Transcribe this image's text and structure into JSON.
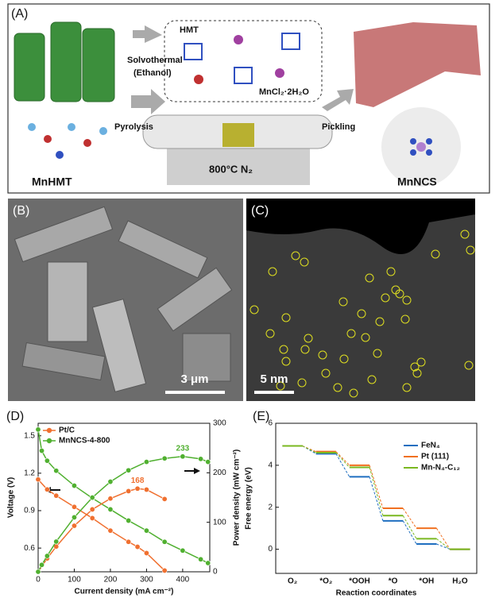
{
  "panel_a": {
    "label": "(A)",
    "solvothermal": "Solvothermal",
    "solvent": "(Ethanol)",
    "hmt": "HMT",
    "mncl": "MnCl₂·2H₂O",
    "pyrolysis": "Pyrolysis",
    "pickling": "Pickling",
    "condition": "800°C  N₂",
    "precursor": "MnHMT",
    "product": "MnNCS"
  },
  "panel_b": {
    "label": "(B)",
    "scale_bar": "3 μm"
  },
  "panel_c": {
    "label": "(C)",
    "scale_bar": "5 nm"
  },
  "panel_d": {
    "label": "(D)"
  },
  "panel_e": {
    "label": "(E)"
  },
  "chart_data": [
    {
      "type": "line",
      "xlabel": "Current density (mA cm⁻²)",
      "ylabel": "Voltage (V)",
      "y2label": "Power density (mW cm⁻²)",
      "xlim": [
        0,
        475
      ],
      "xticks": [
        0,
        100,
        200,
        300,
        400
      ],
      "ylim": [
        0.41,
        1.6
      ],
      "yticks": [
        0.6,
        0.9,
        1.2,
        1.5
      ],
      "y2lim": [
        0,
        300
      ],
      "y2ticks": [
        0,
        100,
        200,
        300
      ],
      "series": [
        {
          "name": "Pt/C",
          "color": "#f07030",
          "x": [
            0,
            25,
            50,
            100,
            150,
            200,
            250,
            275,
            300,
            350
          ],
          "values": [
            1.15,
            1.07,
            1.02,
            0.93,
            0.84,
            0.74,
            0.65,
            0.61,
            0.56,
            0.42
          ]
        },
        {
          "name": "MnNCS-4-800",
          "color": "#50b030",
          "x": [
            0,
            10,
            25,
            50,
            100,
            150,
            200,
            250,
            300,
            350,
            400,
            450,
            470
          ],
          "values": [
            1.55,
            1.38,
            1.3,
            1.22,
            1.1,
            1.0,
            0.91,
            0.82,
            0.74,
            0.65,
            0.58,
            0.51,
            0.48
          ]
        },
        {
          "color": "#f07030",
          "axis": "y2",
          "x": [
            0,
            25,
            50,
            100,
            150,
            200,
            250,
            275,
            300,
            350
          ],
          "values": [
            0,
            27,
            51,
            93,
            126,
            148,
            163,
            168,
            166,
            147
          ],
          "value_labels": [
            null,
            null,
            null,
            null,
            null,
            null,
            null,
            "168",
            null,
            null
          ]
        },
        {
          "color": "#50b030",
          "axis": "y2",
          "x": [
            0,
            10,
            25,
            50,
            100,
            150,
            200,
            250,
            300,
            350,
            400,
            450,
            470
          ],
          "values": [
            0,
            14,
            32,
            61,
            110,
            150,
            182,
            205,
            222,
            229,
            233,
            228,
            222
          ],
          "value_labels": [
            null,
            null,
            null,
            null,
            null,
            null,
            null,
            null,
            null,
            null,
            "233",
            null,
            null
          ]
        }
      ]
    },
    {
      "type": "step",
      "xlabel": "Reaction coordinates",
      "ylabel": "Free energy (eV)",
      "categories": [
        "O₂",
        "*O₂",
        "*OOH",
        "*O",
        "*OH",
        "H₂O"
      ],
      "ylim": [
        -1.15,
        6
      ],
      "yticks": [
        0,
        2,
        4,
        6
      ],
      "series": [
        {
          "name": "FeN₄",
          "color": "#1f6fc0",
          "values": [
            4.92,
            4.55,
            3.45,
            1.35,
            0.25,
            0
          ]
        },
        {
          "name": "Pt (111)",
          "color": "#f07020",
          "values": [
            4.92,
            4.65,
            4.0,
            1.95,
            1.0,
            0
          ]
        },
        {
          "name": "Mn-N₄-C₁₂",
          "color": "#7ab820",
          "values": [
            4.92,
            4.6,
            3.9,
            1.6,
            0.5,
            0
          ]
        }
      ]
    }
  ]
}
